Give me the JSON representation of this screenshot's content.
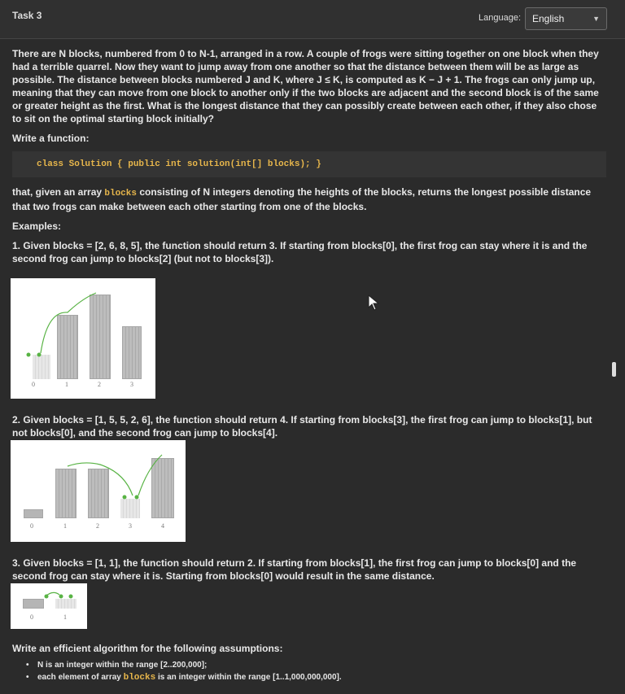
{
  "header": {
    "task_title": "Task 3",
    "language_label": "Language:",
    "language_value": "English"
  },
  "statement": {
    "intro": "There are N blocks, numbered from 0 to N-1, arranged in a row. A couple of frogs were sitting together on one block when they had a terrible quarrel. Now they want to jump away from one another so that the distance between them will be as large as possible. The distance between blocks numbered J and K, where J ≤ K, is computed as K − J + 1. The frogs can only jump up, meaning that they can move from one block to another only if the two blocks are adjacent and the second block is of the same or greater height as the first. What is the longest distance that they can possibly create between each other, if they also chose to sit on the optimal starting block initially?",
    "write_function": "Write a function:",
    "code": "class Solution { public int solution(int[] blocks); }",
    "given_pre": "that, given an array ",
    "given_code": "blocks",
    "given_post": " consisting of N integers denoting the heights of the blocks, returns the longest possible distance that two frogs can make between each other starting from one of the blocks.",
    "examples_label": "Examples:",
    "example1": "1. Given blocks = [2, 6, 8, 5], the function should return 3. If starting from blocks[0], the first frog can stay where it is and the second frog can jump to blocks[2] (but not to blocks[3]).",
    "example2": "2. Given blocks = [1, 5, 5, 2, 6], the function should return 4. If starting from blocks[3], the first frog can jump to blocks[1], but not blocks[0], and the second frog can jump to blocks[4].",
    "example3": "3. Given blocks = [1, 1], the function should return 2. If starting from blocks[1], the first frog can jump to blocks[0] and the second frog can stay where it is. Starting from blocks[0] would result in the same distance.",
    "efficient_label": "Write an efficient algorithm for the following assumptions:",
    "assumption1": "N is an integer within the range [2..200,000];",
    "assumption2_pre": "each element of array ",
    "assumption2_code": "blocks",
    "assumption2_post": " is an integer within the range [1..1,000,000,000]."
  },
  "figures": {
    "fig1_labels": [
      "0",
      "1",
      "2",
      "3"
    ],
    "fig2_labels": [
      "0",
      "1",
      "2",
      "3",
      "4"
    ],
    "fig3_labels": [
      "0",
      "1"
    ]
  },
  "colors": {
    "background": "#2b2b2b",
    "code": "#e7b64b",
    "frog": "#58b344"
  },
  "icons": {
    "dropdown": "chevron-down-icon",
    "cursor": "mouse-cursor-icon"
  }
}
